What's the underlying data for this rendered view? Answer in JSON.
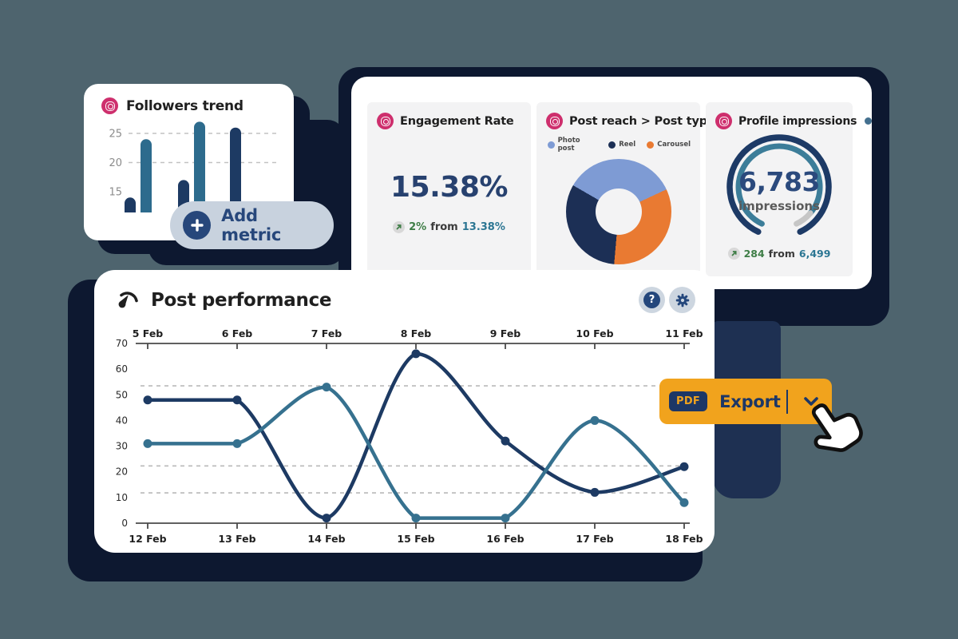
{
  "colors": {
    "background": "#4e646e",
    "plate_navy": "#0d1830",
    "side_panel_navy": "#1e3052",
    "navy_line": "#1d3a63",
    "teal_line": "#36718f",
    "photo_post_blue": "#7e9bd4",
    "reel_navy": "#1c2f55",
    "carousel_orange": "#e97a32",
    "green_up": "#3e7d46",
    "teal_value": "#2c7693",
    "export_orange": "#f1a31d",
    "export_navy": "#1d3766",
    "pill_bg": "#c8d2de",
    "pill_navy": "#27477b",
    "instagram_pink": "#ce2f6d"
  },
  "followers_card": {
    "title": "Followers trend"
  },
  "add_metric": {
    "label": "Add metric"
  },
  "stats_card": {
    "engagement": {
      "title": "Engagement Rate",
      "value": "15.38%",
      "change": "2%",
      "join": "from",
      "previous": "13.38%"
    },
    "post_reach": {
      "title": "Post reach > Post type",
      "legend": [
        {
          "label": "Photo post",
          "color": "#7e9bd4"
        },
        {
          "label": "Reel",
          "color": "#1c2f55"
        },
        {
          "label": "Carousel",
          "color": "#e97a32"
        }
      ]
    },
    "impressions": {
      "title": "Profile impressions",
      "value": "6,783",
      "unit": "impressions",
      "change": "284",
      "join": "from",
      "previous": "6,499"
    }
  },
  "performance_card": {
    "title": "Post performance",
    "help_label": "?"
  },
  "export_button": {
    "badge": "PDF",
    "label": "Export"
  },
  "chart_data": [
    {
      "id": "followers_trend",
      "type": "bar",
      "title": "Followers trend",
      "values": [
        14,
        24,
        17,
        27,
        26
      ],
      "bar_colors": [
        "#1d3a63",
        "#2d6b8d",
        "#1d3a63",
        "#2d6b8d",
        "#1d3a63"
      ],
      "yticks": [
        15,
        20,
        25
      ],
      "grid_values": [
        25,
        20
      ],
      "ylim": [
        11,
        28
      ]
    },
    {
      "id": "engagement_rate",
      "type": "stat",
      "title": "Engagement Rate",
      "value_pct": 15.38,
      "change_pct": 2,
      "previous_pct": 13.38
    },
    {
      "id": "post_reach_by_type",
      "type": "pie",
      "title": "Post reach > Post type",
      "labels": [
        "Photo post",
        "Reel",
        "Carousel"
      ],
      "values_pct": [
        35,
        32,
        33
      ],
      "colors": [
        "#7e9bd4",
        "#1c2f55",
        "#e97a32"
      ],
      "render": {
        "start_deg": 300,
        "segments": [
          {
            "color": "#7e9bd4",
            "deg": 125
          },
          {
            "color": "#e97a32",
            "deg": 120
          },
          {
            "color": "#1c2f55",
            "deg": 115
          }
        ]
      }
    },
    {
      "id": "profile_impressions",
      "type": "gauge",
      "title": "Profile impressions",
      "value": 6783,
      "unit": "impressions",
      "change": 284,
      "previous": 6499
    },
    {
      "id": "post_performance",
      "type": "line",
      "title": "Post performance",
      "x_top": [
        "5 Feb",
        "6 Feb",
        "7 Feb",
        "8 Feb",
        "9 Feb",
        "10 Feb",
        "11 Feb"
      ],
      "x_bottom": [
        "12 Feb",
        "13 Feb",
        "14 Feb",
        "15 Feb",
        "16 Feb",
        "17 Feb",
        "18 Feb"
      ],
      "yticks": [
        0,
        10,
        20,
        30,
        40,
        50,
        60,
        70
      ],
      "ylim": [
        0,
        70
      ],
      "grid_values": [
        53.5,
        22.3,
        11.8
      ],
      "series": [
        {
          "name": "series-dark",
          "color": "#1d3a63",
          "values": [
            48,
            48,
            2,
            66,
            32,
            12,
            22
          ]
        },
        {
          "name": "series-teal",
          "color": "#36718f",
          "values": [
            31,
            31,
            53,
            2,
            2,
            40,
            8
          ]
        }
      ]
    }
  ]
}
